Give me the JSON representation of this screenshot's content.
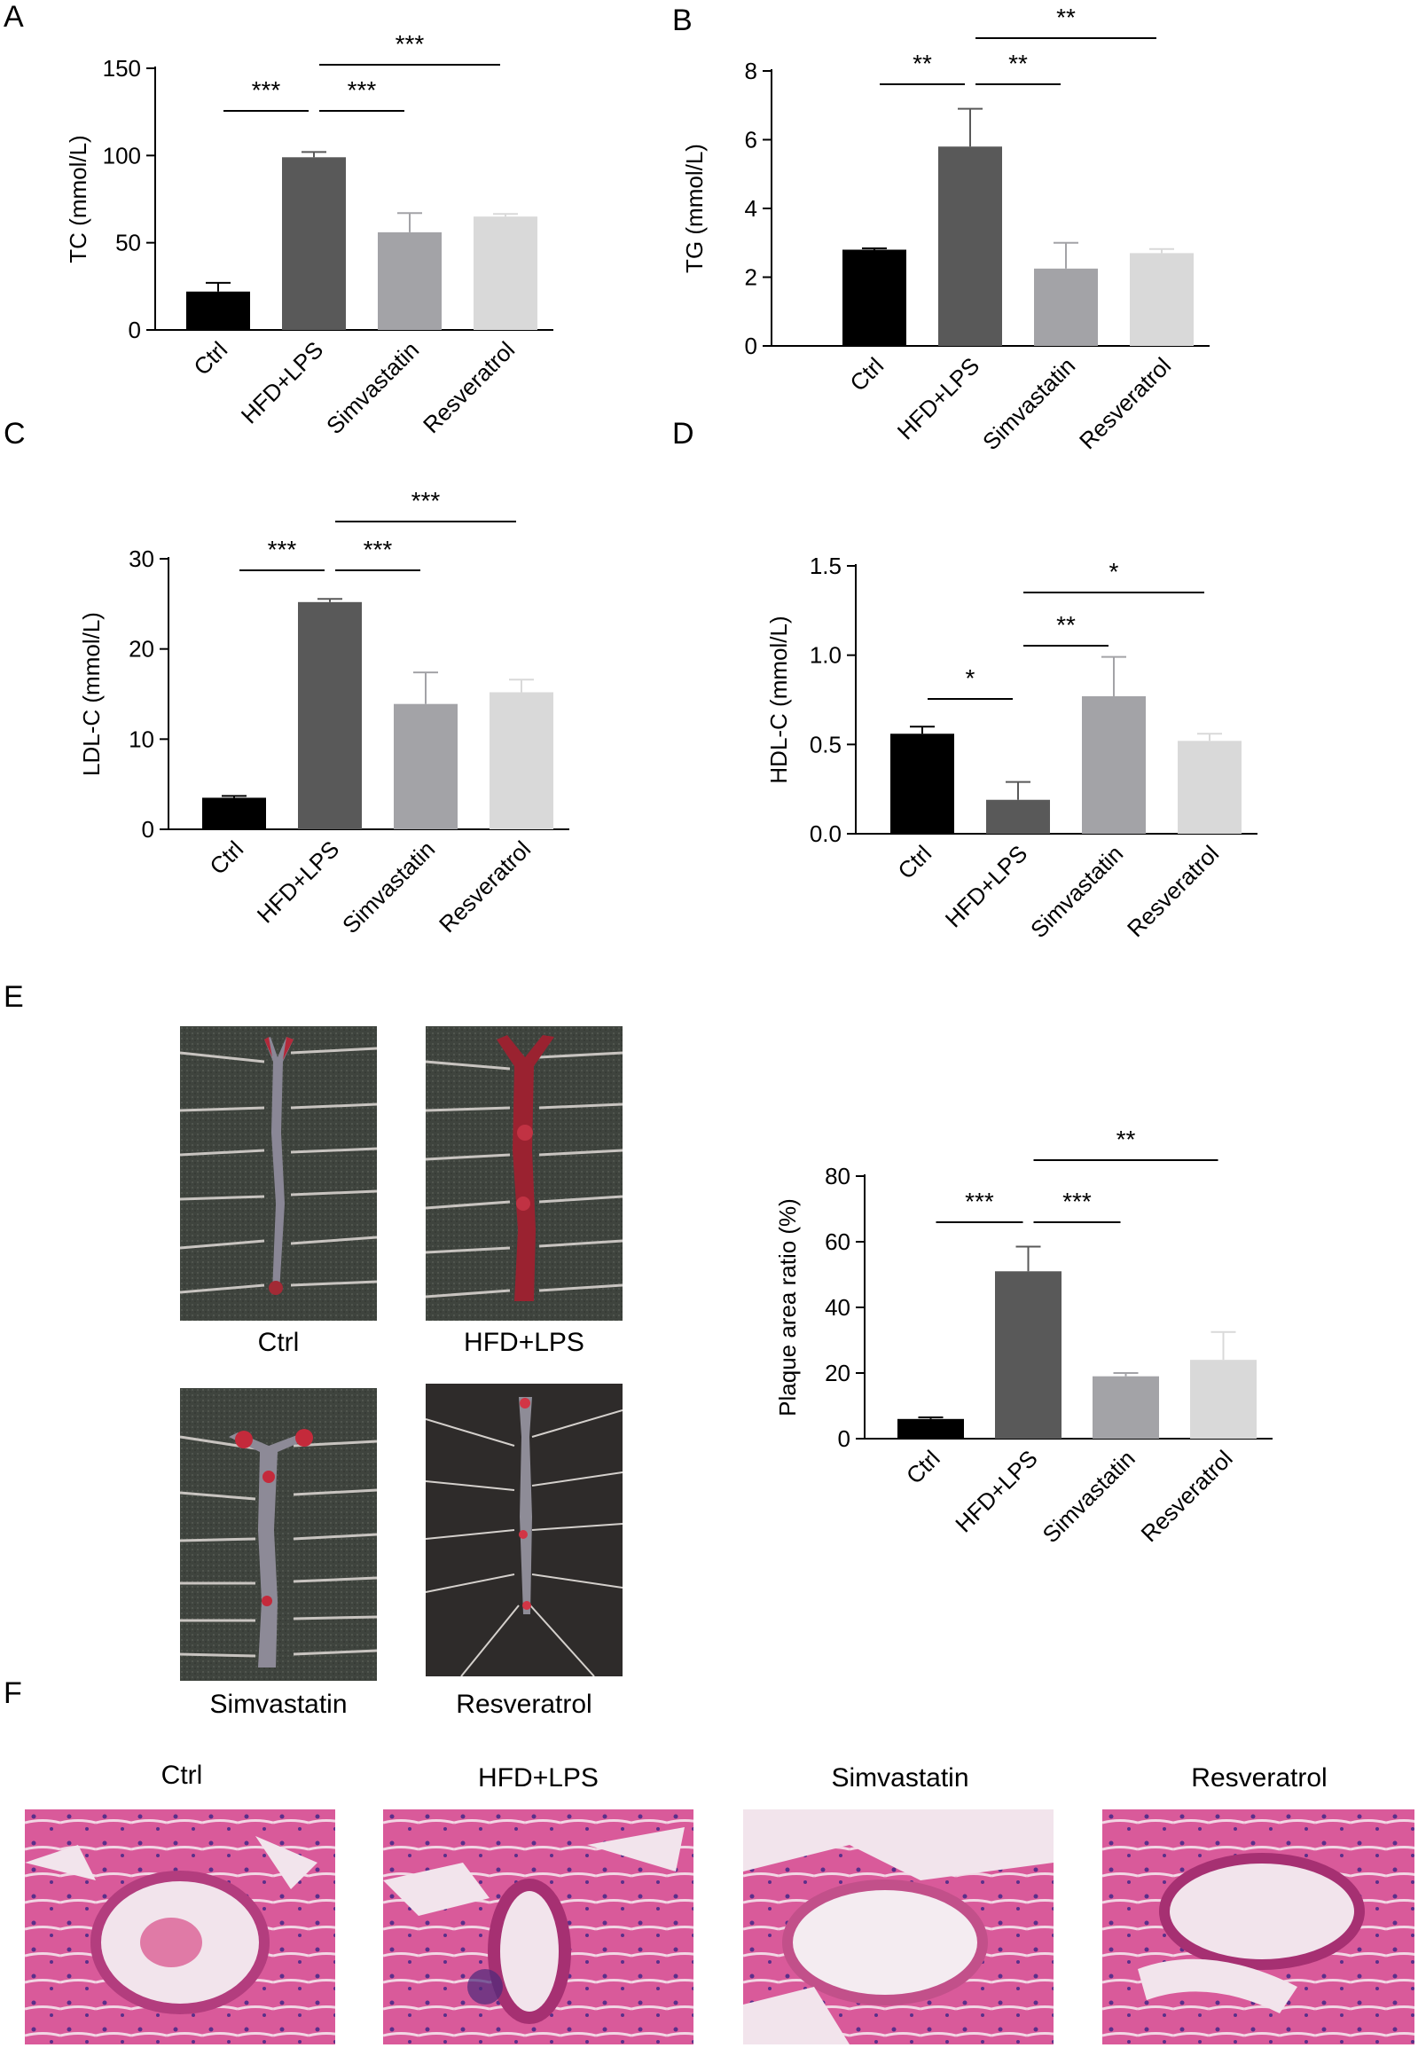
{
  "panels": {
    "A": "A",
    "B": "B",
    "C": "C",
    "D": "D",
    "E": "E",
    "F": "F"
  },
  "colors": [
    "#000000",
    "#595959",
    "#a3a3a7",
    "#d9d9d9"
  ],
  "chart_data": [
    {
      "id": "A",
      "type": "bar",
      "categories": [
        "Ctrl",
        "HFD+LPS",
        "Simvastatin",
        "Resveratrol"
      ],
      "values": [
        22,
        99,
        56,
        65
      ],
      "errors": [
        5,
        3,
        11,
        1.5
      ],
      "ylabel": "TC (mmol/L)",
      "ylim": [
        0,
        150
      ],
      "yticks": [
        "0",
        "50",
        "100",
        "150"
      ],
      "sig": [
        {
          "from": 0,
          "to": 1,
          "label": "***",
          "level": 0
        },
        {
          "from": 1,
          "to": 2,
          "label": "***",
          "level": 0
        },
        {
          "from": 1,
          "to": 3,
          "label": "***",
          "level": 1
        }
      ]
    },
    {
      "id": "B",
      "type": "bar",
      "categories": [
        "Ctrl",
        "HFD+LPS",
        "Simvastatin",
        "Resveratrol"
      ],
      "values": [
        2.8,
        5.8,
        2.25,
        2.7
      ],
      "errors": [
        0.04,
        1.1,
        0.75,
        0.12
      ],
      "ylabel": "TG (mmol/L)",
      "ylim": [
        0,
        8
      ],
      "yticks": [
        "0",
        "2",
        "4",
        "6",
        "8"
      ],
      "sig": [
        {
          "from": 0,
          "to": 1,
          "label": "**",
          "level": 0
        },
        {
          "from": 1,
          "to": 2,
          "label": "**",
          "level": 0
        },
        {
          "from": 1,
          "to": 3,
          "label": "**",
          "level": 1
        }
      ]
    },
    {
      "id": "C",
      "type": "bar",
      "categories": [
        "Ctrl",
        "HFD+LPS",
        "Simvastatin",
        "Resveratrol"
      ],
      "values": [
        3.5,
        25.2,
        13.9,
        15.2
      ],
      "errors": [
        0.2,
        0.35,
        3.5,
        1.4
      ],
      "ylabel": "LDL-C (mmol/L)",
      "ylim": [
        0,
        30
      ],
      "yticks": [
        "0",
        "10",
        "20",
        "30"
      ],
      "sig": [
        {
          "from": 0,
          "to": 1,
          "label": "***",
          "level": 0
        },
        {
          "from": 1,
          "to": 2,
          "label": "***",
          "level": 0
        },
        {
          "from": 1,
          "to": 3,
          "label": "***",
          "level": 1
        }
      ]
    },
    {
      "id": "D",
      "type": "bar",
      "categories": [
        "Ctrl",
        "HFD+LPS",
        "Simvastatin",
        "Resveratrol"
      ],
      "values": [
        0.56,
        0.19,
        0.77,
        0.52
      ],
      "errors": [
        0.04,
        0.1,
        0.22,
        0.04
      ],
      "ylabel": "HDL-C (mmol/L)",
      "ylim": [
        0,
        1.5
      ],
      "yticks": [
        "0.0",
        "0.5",
        "1.0",
        "1.5"
      ],
      "sig": [
        {
          "from": 0,
          "to": 1,
          "label": "*",
          "level": 0
        },
        {
          "from": 1,
          "to": 2,
          "label": "**",
          "level": 1
        },
        {
          "from": 1,
          "to": 3,
          "label": "*",
          "level": 2
        }
      ]
    },
    {
      "id": "E",
      "type": "bar",
      "categories": [
        "Ctrl",
        "HFD+LPS",
        "Simvastatin",
        "Resveratrol"
      ],
      "values": [
        6,
        51,
        19,
        24
      ],
      "errors": [
        0.5,
        7.5,
        1,
        8.5
      ],
      "ylabel": "Plaque area ratio (%)",
      "ylim": [
        0,
        80
      ],
      "yticks": [
        "0",
        "20",
        "40",
        "60",
        "80"
      ],
      "sig": [
        {
          "from": 0,
          "to": 1,
          "label": "***",
          "level": 0
        },
        {
          "from": 1,
          "to": 2,
          "label": "***",
          "level": 0
        },
        {
          "from": 1,
          "to": 3,
          "label": "**",
          "level": 1
        }
      ]
    }
  ],
  "panelE": {
    "captions": [
      "Ctrl",
      "HFD+LPS",
      "Simvastatin",
      "Resveratrol"
    ]
  },
  "panelF": {
    "captions": [
      "Ctrl",
      "HFD+LPS",
      "Simvastatin",
      "Resveratrol"
    ]
  }
}
